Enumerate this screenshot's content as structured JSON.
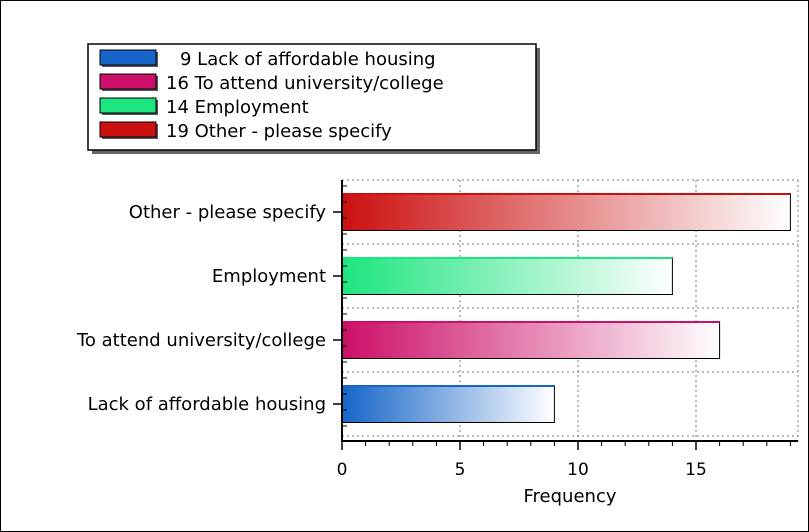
{
  "chart_data": {
    "type": "bar",
    "orientation": "horizontal",
    "title": "",
    "xlabel": "Frequency",
    "ylabel": "",
    "xlim": [
      0,
      19
    ],
    "xticks": [
      0,
      5,
      10,
      15
    ],
    "grid": true,
    "legend_position": "top-left",
    "categories": [
      "Lack of affordable housing",
      "To attend university/college",
      "Employment",
      "Other - please specify"
    ],
    "values": [
      9,
      16,
      14,
      19
    ],
    "colors": [
      "#1565c8",
      "#cc0f68",
      "#1de57f",
      "#cc1010"
    ],
    "legend": [
      {
        "count": "9",
        "label": "Lack of affordable housing"
      },
      {
        "count": "16",
        "label": "To attend university/college"
      },
      {
        "count": "14",
        "label": "Employment"
      },
      {
        "count": "19",
        "label": "Other - please specify"
      }
    ]
  }
}
